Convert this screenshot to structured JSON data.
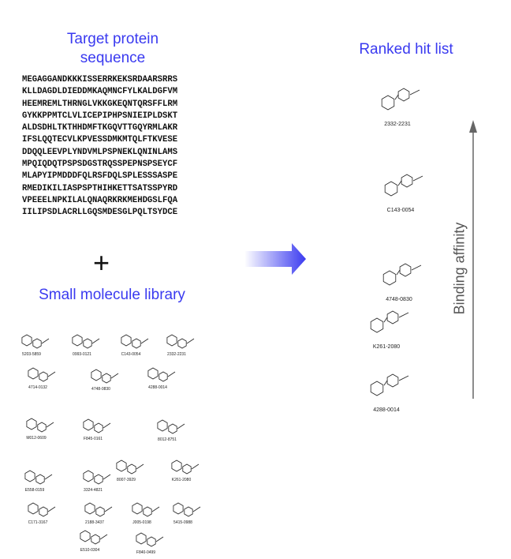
{
  "sequence_panel": {
    "title": "Target protein sequence",
    "lines": [
      "MEGAGGANDKKKISSERRKEKSRDAARSRRS",
      "KLLDAGDLDIEDDMKAQMNCFYLKALDGFVM",
      "HEEMREMLTHRNGLVKKGKEQNTQRSFFLRM",
      "GYKKPPMTCLVLICEPIPHPSNIEIPLDSKT",
      "ALDSDHLTKTHHDMFTKGQVTTGQYRMLAKR",
      "IFSLQQTECVLKPVESSDMKMTQLFTKVESE",
      "DDQQLEEVPLYNDVMLPSPNEKLQNINLAMS",
      "MPQIQDQTPSPSDGSTRQSSPEPNSPSEYCF",
      "MLAPYIPMDDDFQLRSFDQLSPLESSSASPE",
      "RMEDIKILIASPSPTHIHKETTSATSSPYRD",
      "VPEEELNPKILALQNAQRKRKMEHDGSLFQA",
      "IILIPSDLACRLLGQSMDESGLPQLTSYDCE"
    ]
  },
  "plus": "+",
  "library": {
    "title": "Small molecule library",
    "compounds": [
      "5203-5859",
      "0993-0121",
      "C143-0054",
      "2332-2231",
      "4714-0132",
      "4748-0830",
      "4288-0014",
      "M012-0609",
      "F845-0161",
      "8012-8751",
      "8007-3929",
      "K261-2080",
      "E558-0159",
      "3324-4821",
      "C171-3167",
      "2188-3437",
      "J005-0198",
      "5415-0988",
      "E510-0304",
      "F840-0499"
    ]
  },
  "hit_list": {
    "title": "Ranked hit list",
    "hits": [
      "2332-2231",
      "C143-0054",
      "4748-0830",
      "K261-2080",
      "4288-0014"
    ],
    "axis_label": "Binding affinity"
  }
}
